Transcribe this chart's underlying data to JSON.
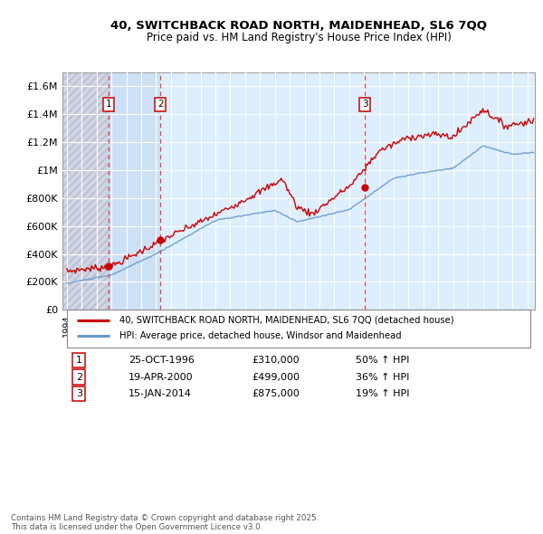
{
  "title": "40, SWITCHBACK ROAD NORTH, MAIDENHEAD, SL6 7QQ",
  "subtitle": "Price paid vs. HM Land Registry's House Price Index (HPI)",
  "sale_dates": [
    "25-OCT-1996",
    "19-APR-2000",
    "15-JAN-2014"
  ],
  "sale_years": [
    1996.82,
    2000.3,
    2014.05
  ],
  "sale_prices": [
    310000,
    499000,
    875000
  ],
  "sale_labels": [
    "1",
    "2",
    "3"
  ],
  "sale_hpi_pct": [
    "50% ↑ HPI",
    "36% ↑ HPI",
    "19% ↑ HPI"
  ],
  "sale_prices_str": [
    "£310,000",
    "£499,000",
    "£875,000"
  ],
  "hpi_line_color": "#6699cc",
  "price_line_color": "#cc0000",
  "marker_color": "#cc0000",
  "vline_color": "#dd4444",
  "chart_bg_color": "#ddeeff",
  "hatch_color": "#bbbbcc",
  "between_sales_color": "#d0e4f4",
  "grid_color": "#bbbbcc",
  "legend_line1": "40, SWITCHBACK ROAD NORTH, MAIDENHEAD, SL6 7QQ (detached house)",
  "legend_line2": "HPI: Average price, detached house, Windsor and Maidenhead",
  "footer": "Contains HM Land Registry data © Crown copyright and database right 2025.\nThis data is licensed under the Open Government Licence v3.0.",
  "ylim": [
    0,
    1700000
  ],
  "yticks": [
    0,
    200000,
    400000,
    600000,
    800000,
    1000000,
    1200000,
    1400000,
    1600000
  ],
  "ytick_labels": [
    "£0",
    "£200K",
    "£400K",
    "£600K",
    "£800K",
    "£1M",
    "£1.2M",
    "£1.4M",
    "£1.6M"
  ],
  "xlim_start": 1993.7,
  "xlim_end": 2025.5
}
